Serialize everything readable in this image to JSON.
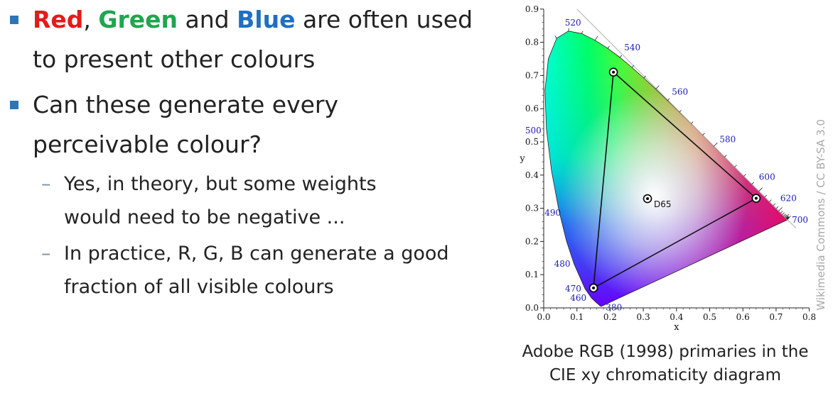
{
  "bullets": [
    {
      "red_word": "Red",
      "sep1": ", ",
      "green_word": "Green",
      "sep2": " and ",
      "blue_word": "Blue",
      "line1_rest": " are often used",
      "line2": "to present other colours"
    },
    {
      "line1": "Can these generate every",
      "line2": "perceivable colour?",
      "sub": [
        {
          "line1": "Yes, in theory, but some weights",
          "line2": "would need to be negative ..."
        },
        {
          "line1": "In practice, R, G, B can generate a good",
          "line2": "fraction of all visible colours"
        }
      ]
    }
  ],
  "sub_marker": "–",
  "colors": {
    "red": "#e31b1b",
    "green": "#1fa64f",
    "blue": "#1f6fc3",
    "bullet": "#2e75b6",
    "wavelength_label": "#1a1ab0"
  },
  "figure": {
    "x_axis_label": "x",
    "y_axis_label": "y",
    "x_ticks": [
      "0.0",
      "0.1",
      "0.2",
      "0.3",
      "0.4",
      "0.5",
      "0.6",
      "0.7",
      "0.8"
    ],
    "y_ticks": [
      "0.0",
      "0.1",
      "0.2",
      "0.3",
      "0.4",
      "0.5",
      "0.6",
      "0.7",
      "0.8",
      "0.9"
    ],
    "white_point": {
      "label": "D65",
      "x": 0.3127,
      "y": 0.329
    },
    "primaries": [
      {
        "name": "red",
        "x": 0.64,
        "y": 0.33
      },
      {
        "name": "green",
        "x": 0.21,
        "y": 0.71
      },
      {
        "name": "blue",
        "x": 0.15,
        "y": 0.06
      }
    ],
    "wavelength_labels": [
      {
        "text": "380",
        "x": 0.1741,
        "y": 0.005
      },
      {
        "text": "460",
        "x": 0.144,
        "y": 0.0297
      },
      {
        "text": "470",
        "x": 0.1241,
        "y": 0.0578
      },
      {
        "text": "480",
        "x": 0.0913,
        "y": 0.1327
      },
      {
        "text": "490",
        "x": 0.0454,
        "y": 0.295
      },
      {
        "text": "500",
        "x": 0.0082,
        "y": 0.5384
      },
      {
        "text": "520",
        "x": 0.0743,
        "y": 0.8338
      },
      {
        "text": "540",
        "x": 0.2296,
        "y": 0.7543
      },
      {
        "text": "560",
        "x": 0.3731,
        "y": 0.6245
      },
      {
        "text": "580",
        "x": 0.5125,
        "y": 0.4866
      },
      {
        "text": "600",
        "x": 0.627,
        "y": 0.3725
      },
      {
        "text": "620",
        "x": 0.6915,
        "y": 0.3083
      },
      {
        "text": "700",
        "x": 0.7347,
        "y": 0.2653
      }
    ],
    "caption_line1": "Adobe RGB (1998) primaries in the",
    "caption_line2": "CIE xy chromaticity diagram",
    "credit": "Wikimedia Commons / CC BY-SA 3.0"
  }
}
